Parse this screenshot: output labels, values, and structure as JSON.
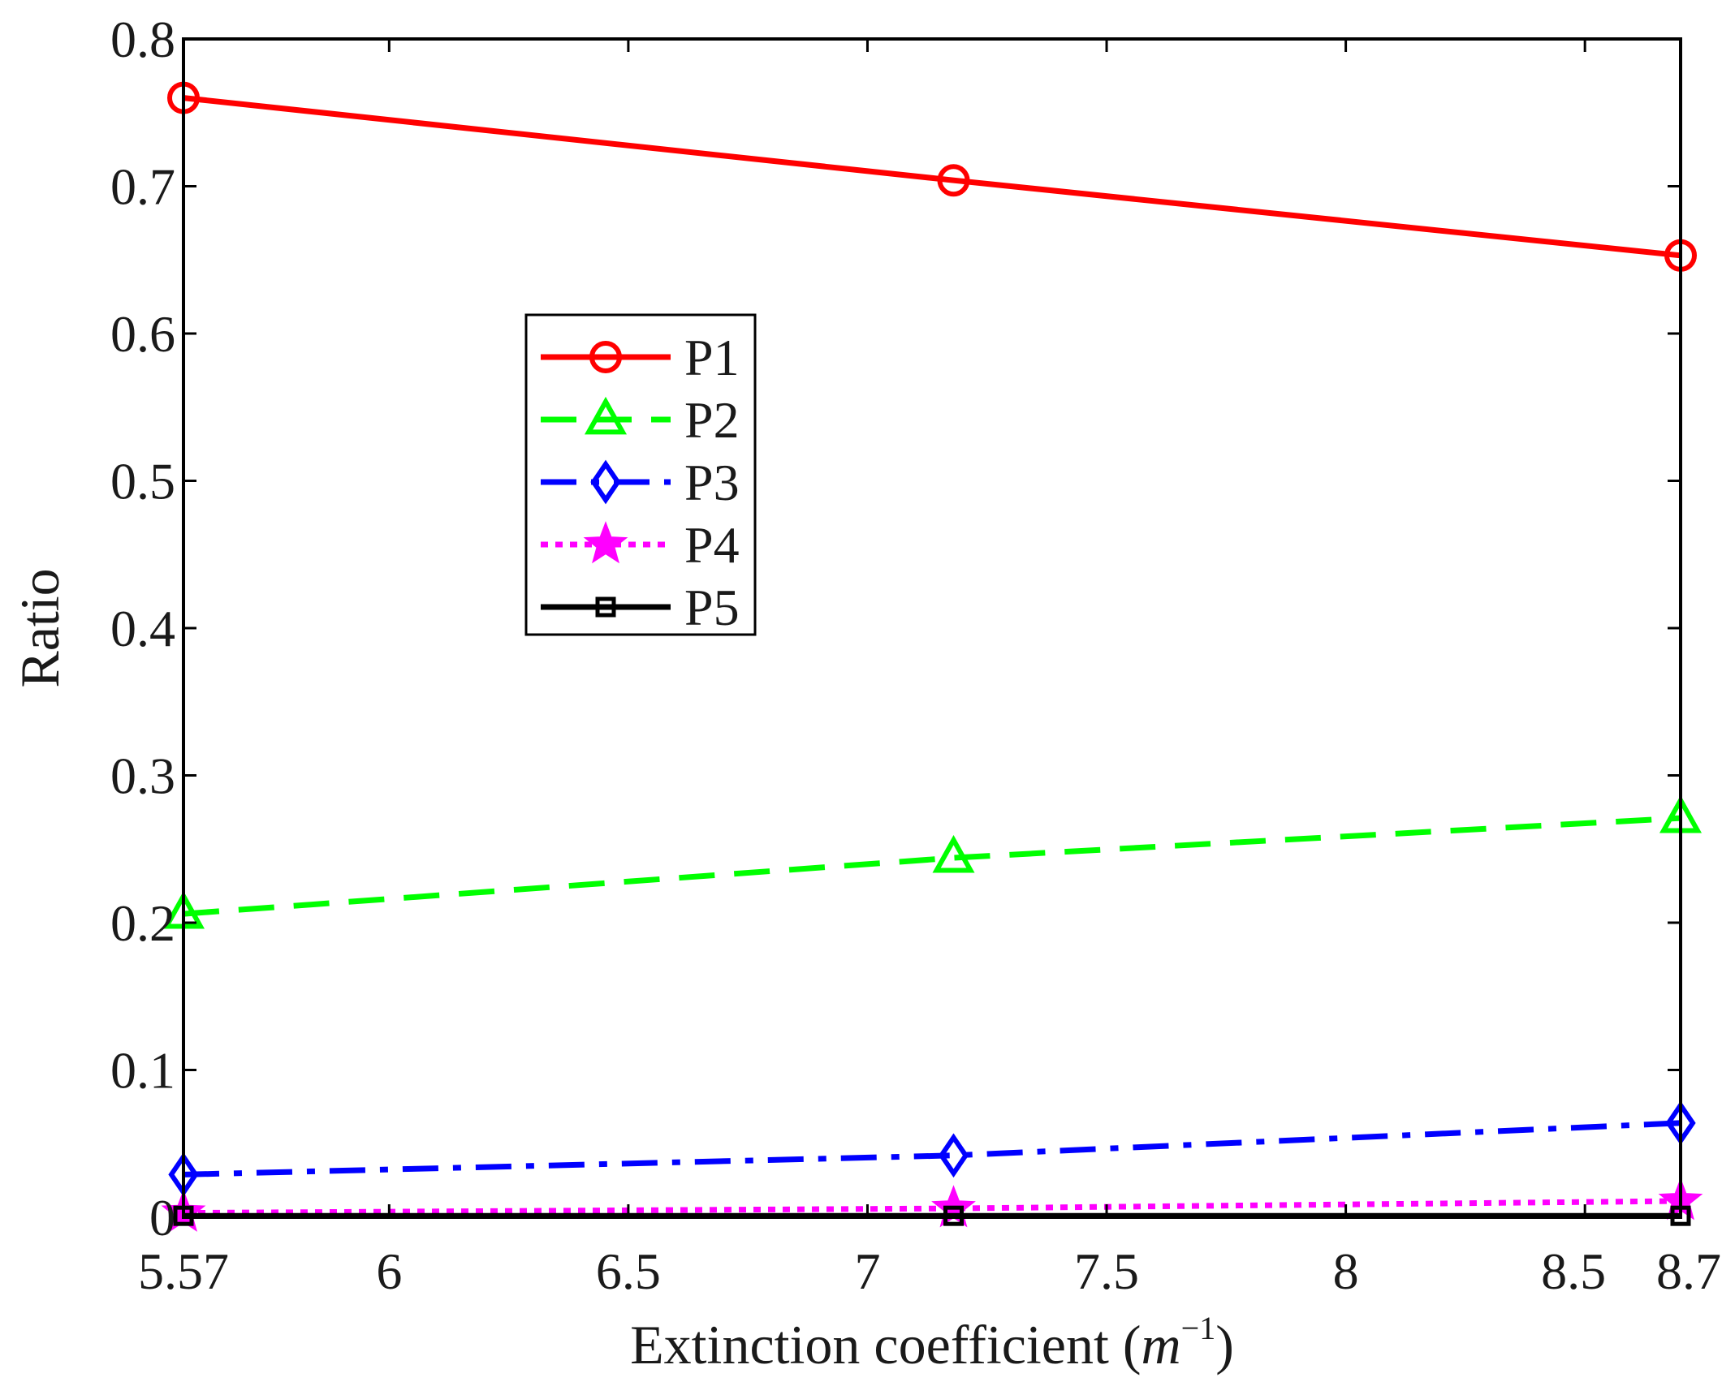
{
  "chart_data": {
    "type": "line",
    "title": "",
    "xlabel": "Extinction coefficient",
    "xlabel_unit_base": "m",
    "xlabel_unit_exp": "−1",
    "ylabel": "Ratio",
    "xlim": [
      5.57,
      8.7
    ],
    "ylim": [
      0,
      0.8
    ],
    "x_ticks": [
      5.57,
      6,
      6.5,
      7,
      7.5,
      8,
      8.5,
      8.7
    ],
    "x_tick_labels": [
      "5.57",
      "6",
      "6.5",
      "7",
      "7.5",
      "8",
      "8.5",
      "8.7"
    ],
    "y_ticks": [
      0,
      0.1,
      0.2,
      0.3,
      0.4,
      0.5,
      0.6,
      0.7,
      0.8
    ],
    "y_tick_labels": [
      "0",
      "0.1",
      "0.2",
      "0.3",
      "0.4",
      "0.5",
      "0.6",
      "0.7",
      "0.8"
    ],
    "grid": false,
    "legend_position": "upper-center-left",
    "x": [
      5.57,
      7.18,
      8.7
    ],
    "series": [
      {
        "name": "P1",
        "values": [
          0.76,
          0.704,
          0.653
        ],
        "color": "#ff0000",
        "dash": "solid",
        "marker": "circle"
      },
      {
        "name": "P2",
        "values": [
          0.206,
          0.244,
          0.271
        ],
        "color": "#00ff00",
        "dash": "dashed",
        "marker": "triangle"
      },
      {
        "name": "P3",
        "values": [
          0.029,
          0.042,
          0.064
        ],
        "color": "#0000ff",
        "dash": "dashdot",
        "marker": "diamond"
      },
      {
        "name": "P4",
        "values": [
          0.003,
          0.006,
          0.011
        ],
        "color": "#ff00ff",
        "dash": "dotted",
        "marker": "star"
      },
      {
        "name": "P5",
        "values": [
          0.001,
          0.001,
          0.001
        ],
        "color": "#000000",
        "dash": "solid",
        "marker": "square"
      }
    ]
  }
}
